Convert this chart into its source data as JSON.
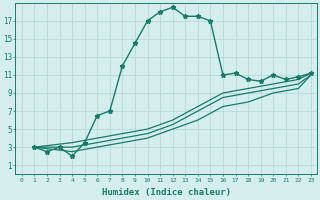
{
  "xlabel": "Humidex (Indice chaleur)",
  "ylabel": "",
  "bg_color": "#d4eeee",
  "grid_color": "#b8d8d8",
  "line_color": "#1a7a6a",
  "xlim": [
    -0.5,
    23.5
  ],
  "ylim": [
    0,
    19
  ],
  "xticks": [
    0,
    1,
    2,
    3,
    4,
    5,
    6,
    7,
    8,
    9,
    10,
    11,
    12,
    13,
    14,
    15,
    16,
    17,
    18,
    19,
    20,
    21,
    22,
    23
  ],
  "yticks": [
    1,
    3,
    5,
    7,
    9,
    11,
    13,
    15,
    17
  ],
  "series": [
    {
      "x": [
        1,
        2,
        3,
        4,
        5,
        6,
        7,
        8,
        9,
        10,
        11,
        12,
        13,
        14,
        15,
        16,
        17,
        18,
        19,
        20,
        21,
        22,
        23
      ],
      "y": [
        3,
        2.5,
        3,
        2,
        3.5,
        6.5,
        7,
        12,
        14.5,
        17,
        18,
        18.5,
        17.5,
        17.5,
        17,
        11,
        11.2,
        10.5,
        10.3,
        11,
        10.5,
        10.8,
        11.2
      ],
      "marker": "*",
      "lw": 1.0,
      "markersize": 3.5
    },
    {
      "x": [
        1,
        4,
        6,
        8,
        10,
        12,
        14,
        16,
        18,
        20,
        22,
        23
      ],
      "y": [
        3,
        3.5,
        4,
        4.5,
        5,
        6,
        7.5,
        9,
        9.5,
        10,
        10.5,
        11.2
      ],
      "marker": null,
      "lw": 0.9
    },
    {
      "x": [
        1,
        4,
        6,
        8,
        10,
        12,
        14,
        16,
        18,
        20,
        22,
        23
      ],
      "y": [
        3,
        3,
        3.5,
        4,
        4.5,
        5.5,
        7,
        8.5,
        9,
        9.5,
        10,
        11
      ],
      "marker": null,
      "lw": 0.9
    },
    {
      "x": [
        1,
        4,
        6,
        8,
        10,
        12,
        14,
        16,
        18,
        20,
        22,
        23
      ],
      "y": [
        3,
        2.5,
        3,
        3.5,
        4,
        5,
        6,
        7.5,
        8,
        9,
        9.5,
        11
      ],
      "marker": null,
      "lw": 0.9
    }
  ]
}
